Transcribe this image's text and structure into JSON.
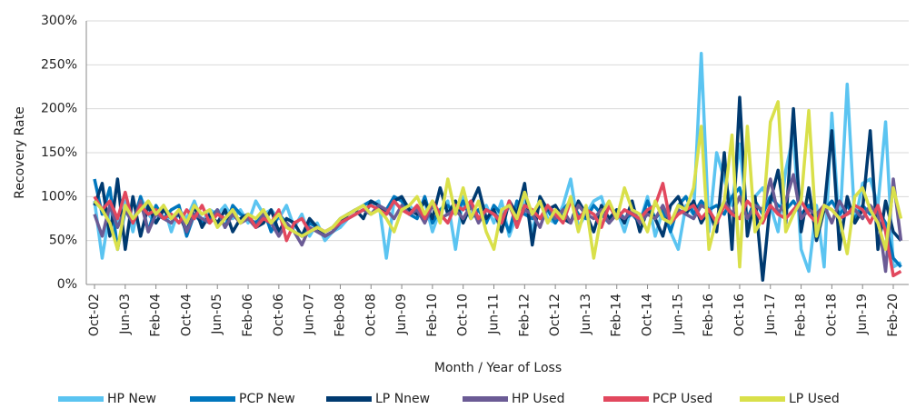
{
  "chart_data": {
    "type": "line",
    "y_label": "Recovery Rate",
    "x_label": "Month / Year of Loss",
    "ylim": [
      0,
      300
    ],
    "yticks": [
      {
        "value": 0,
        "label": "0%"
      },
      {
        "value": 50,
        "label": "50%"
      },
      {
        "value": 100,
        "label": "100%"
      },
      {
        "value": 150,
        "label": "150%"
      },
      {
        "value": 200,
        "label": "200%"
      },
      {
        "value": 250,
        "label": "250%"
      },
      {
        "value": 300,
        "label": "300%"
      }
    ],
    "grid": true,
    "legend": "bottom",
    "categories": [
      "Oct-02",
      null,
      null,
      null,
      "Jun-03",
      null,
      null,
      null,
      "Feb-04",
      null,
      null,
      null,
      "Oct-04",
      null,
      null,
      null,
      "Jun-05",
      null,
      null,
      null,
      "Feb-06",
      null,
      null,
      null,
      "Oct-06",
      null,
      null,
      null,
      "Jun-07",
      null,
      null,
      null,
      "Feb-08",
      null,
      null,
      null,
      "Oct-08",
      null,
      null,
      null,
      "Jun-09",
      null,
      null,
      null,
      "Feb-10",
      null,
      null,
      null,
      "Oct-10",
      null,
      null,
      null,
      "Jun-11",
      null,
      null,
      null,
      "Feb-12",
      null,
      null,
      null,
      "Oct-12",
      null,
      null,
      null,
      "Jun-13",
      null,
      null,
      null,
      "Feb-14",
      null,
      null,
      null,
      "Oct-14",
      null,
      null,
      null,
      "Jun-15",
      null,
      null,
      null,
      "Feb-16",
      null,
      null,
      null,
      "Oct-16",
      null,
      null,
      null,
      "Jun-17",
      null,
      null,
      null,
      "Feb-18",
      null,
      null,
      null,
      "Oct-18",
      null,
      null,
      null,
      "Jun-19",
      null,
      null,
      null,
      "Feb-20",
      null
    ],
    "series": [
      {
        "name": "HP New",
        "color": "#5bc4f1",
        "values": [
          95,
          30,
          85,
          70,
          95,
          60,
          100,
          80,
          70,
          90,
          60,
          85,
          75,
          95,
          70,
          85,
          80,
          90,
          75,
          85,
          70,
          95,
          80,
          85,
          75,
          90,
          65,
          80,
          55,
          70,
          50,
          60,
          65,
          75,
          80,
          85,
          90,
          95,
          30,
          95,
          85,
          90,
          80,
          95,
          60,
          85,
          95,
          40,
          100,
          80,
          85,
          90,
          70,
          95,
          55,
          80,
          95,
          60,
          100,
          75,
          70,
          90,
          120,
          65,
          80,
          95,
          100,
          70,
          85,
          60,
          90,
          70,
          100,
          55,
          85,
          60,
          40,
          90,
          80,
          263,
          60,
          150,
          120,
          90,
          160,
          70,
          100,
          110,
          90,
          60,
          130,
          170,
          40,
          15,
          90,
          20,
          195,
          60,
          228,
          70,
          115,
          120,
          90,
          185,
          20,
          25
        ]
      },
      {
        "name": "PCP New",
        "color": "#0076bd",
        "values": [
          120,
          80,
          110,
          40,
          85,
          70,
          100,
          60,
          90,
          75,
          85,
          90,
          55,
          80,
          70,
          75,
          85,
          65,
          90,
          80,
          75,
          70,
          85,
          60,
          80,
          70,
          60,
          55,
          70,
          65,
          60,
          65,
          75,
          80,
          85,
          90,
          95,
          90,
          85,
          100,
          95,
          80,
          75,
          100,
          70,
          85,
          90,
          80,
          95,
          75,
          85,
          70,
          90,
          80,
          60,
          95,
          80,
          75,
          90,
          85,
          70,
          85,
          95,
          80,
          75,
          90,
          80,
          70,
          85,
          75,
          80,
          70,
          95,
          75,
          85,
          60,
          90,
          100,
          80,
          95,
          85,
          90,
          80,
          100,
          110,
          75,
          95,
          80,
          100,
          90,
          85,
          95,
          80,
          90,
          75,
          85,
          95,
          80,
          90,
          75,
          90,
          80,
          85,
          70,
          30,
          20
        ]
      },
      {
        "name": "LP Nnew",
        "color": "#003a70",
        "values": [
          90,
          115,
          55,
          120,
          40,
          100,
          55,
          90,
          70,
          85,
          75,
          80,
          60,
          90,
          65,
          80,
          70,
          85,
          60,
          75,
          80,
          65,
          70,
          85,
          60,
          75,
          70,
          55,
          75,
          65,
          55,
          60,
          70,
          80,
          85,
          75,
          95,
          90,
          80,
          95,
          100,
          85,
          80,
          95,
          75,
          110,
          80,
          95,
          70,
          90,
          110,
          75,
          85,
          60,
          95,
          80,
          115,
          45,
          100,
          85,
          90,
          75,
          70,
          95,
          80,
          60,
          90,
          75,
          85,
          70,
          95,
          60,
          85,
          75,
          55,
          90,
          100,
          80,
          95,
          70,
          85,
          60,
          150,
          40,
          213,
          55,
          100,
          5,
          95,
          130,
          70,
          200,
          60,
          110,
          50,
          85,
          175,
          40,
          100,
          70,
          85,
          175,
          40,
          95,
          60,
          50
        ]
      },
      {
        "name": "HP Used",
        "color": "#6b5b95",
        "values": [
          80,
          55,
          90,
          65,
          85,
          70,
          95,
          60,
          80,
          75,
          70,
          85,
          60,
          80,
          75,
          70,
          85,
          65,
          80,
          70,
          75,
          65,
          80,
          70,
          55,
          70,
          60,
          45,
          65,
          60,
          55,
          60,
          70,
          75,
          80,
          85,
          80,
          90,
          85,
          75,
          90,
          80,
          85,
          70,
          90,
          75,
          80,
          85,
          75,
          90,
          70,
          85,
          80,
          75,
          90,
          70,
          85,
          80,
          65,
          90,
          75,
          85,
          70,
          90,
          80,
          75,
          85,
          70,
          80,
          75,
          85,
          70,
          80,
          75,
          90,
          70,
          85,
          80,
          75,
          90,
          85,
          70,
          95,
          80,
          100,
          75,
          90,
          85,
          120,
          80,
          95,
          125,
          75,
          85,
          80,
          90,
          70,
          95,
          80,
          85,
          75,
          90,
          80,
          15,
          120,
          50
        ]
      },
      {
        "name": "PCP Used",
        "color": "#e2485e",
        "values": [
          100,
          85,
          95,
          75,
          105,
          70,
          90,
          80,
          85,
          75,
          80,
          70,
          85,
          75,
          90,
          70,
          80,
          75,
          85,
          70,
          80,
          65,
          75,
          70,
          85,
          50,
          70,
          75,
          60,
          65,
          60,
          65,
          70,
          75,
          80,
          85,
          90,
          85,
          80,
          95,
          85,
          80,
          90,
          75,
          95,
          80,
          70,
          90,
          85,
          95,
          75,
          85,
          80,
          70,
          95,
          65,
          90,
          85,
          75,
          90,
          80,
          70,
          95,
          75,
          85,
          80,
          65,
          90,
          75,
          85,
          80,
          75,
          85,
          90,
          115,
          70,
          80,
          85,
          90,
          75,
          85,
          70,
          90,
          80,
          75,
          95,
          85,
          70,
          90,
          80,
          75,
          85,
          95,
          80,
          70,
          90,
          85,
          75,
          80,
          90,
          85,
          70,
          90,
          60,
          10,
          15
        ]
      },
      {
        "name": "LP Used",
        "color": "#d9e04a",
        "values": [
          95,
          85,
          70,
          40,
          90,
          75,
          85,
          95,
          80,
          90,
          75,
          85,
          70,
          90,
          80,
          85,
          65,
          75,
          85,
          70,
          80,
          75,
          85,
          70,
          80,
          65,
          60,
          55,
          60,
          65,
          60,
          65,
          75,
          80,
          85,
          90,
          80,
          85,
          75,
          60,
          85,
          90,
          100,
          80,
          95,
          70,
          120,
          80,
          110,
          75,
          95,
          60,
          40,
          85,
          90,
          75,
          105,
          80,
          95,
          70,
          85,
          75,
          100,
          60,
          90,
          30,
          80,
          95,
          75,
          110,
          85,
          80,
          60,
          95,
          75,
          70,
          90,
          85,
          110,
          180,
          40,
          75,
          95,
          170,
          20,
          180,
          60,
          75,
          185,
          208,
          60,
          80,
          95,
          198,
          55,
          90,
          85,
          75,
          35,
          100,
          110,
          85,
          70,
          40,
          110,
          75
        ]
      }
    ]
  }
}
